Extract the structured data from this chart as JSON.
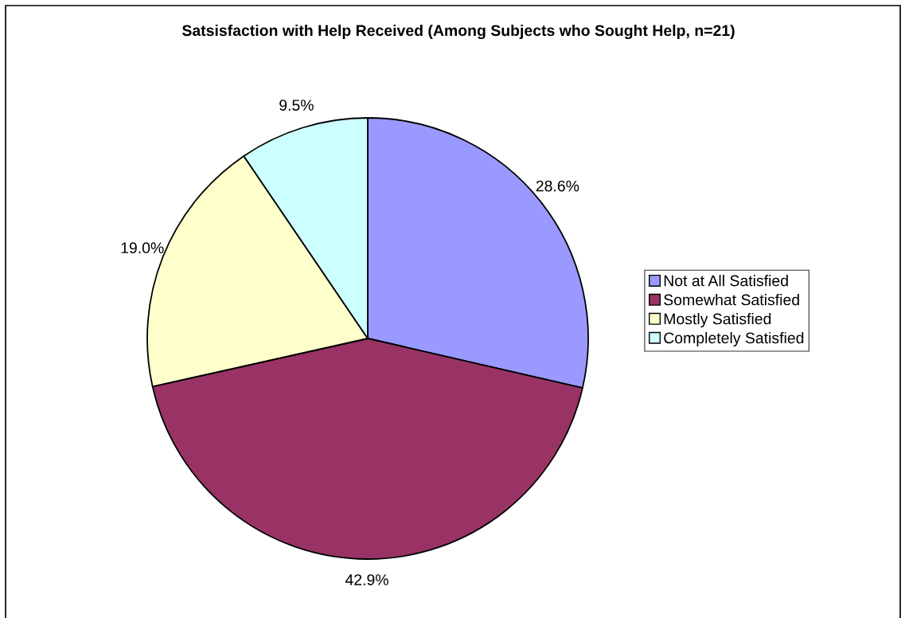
{
  "chart_data": {
    "type": "pie",
    "title": "Satsisfaction with Help Received (Among Subjects who Sought Help, n=21)",
    "categories": [
      "Not at All Satisfied",
      "Somewhat Satisfied",
      "Mostly Satisfied",
      "Completely Satisfied"
    ],
    "values": [
      28.6,
      42.9,
      19.0,
      9.5
    ],
    "colors": [
      "#9999ff",
      "#993366",
      "#ffffcc",
      "#ccffff"
    ],
    "value_labels": [
      "28.6%",
      "42.9%",
      "19.0%",
      "9.5%"
    ],
    "legend": "right"
  }
}
